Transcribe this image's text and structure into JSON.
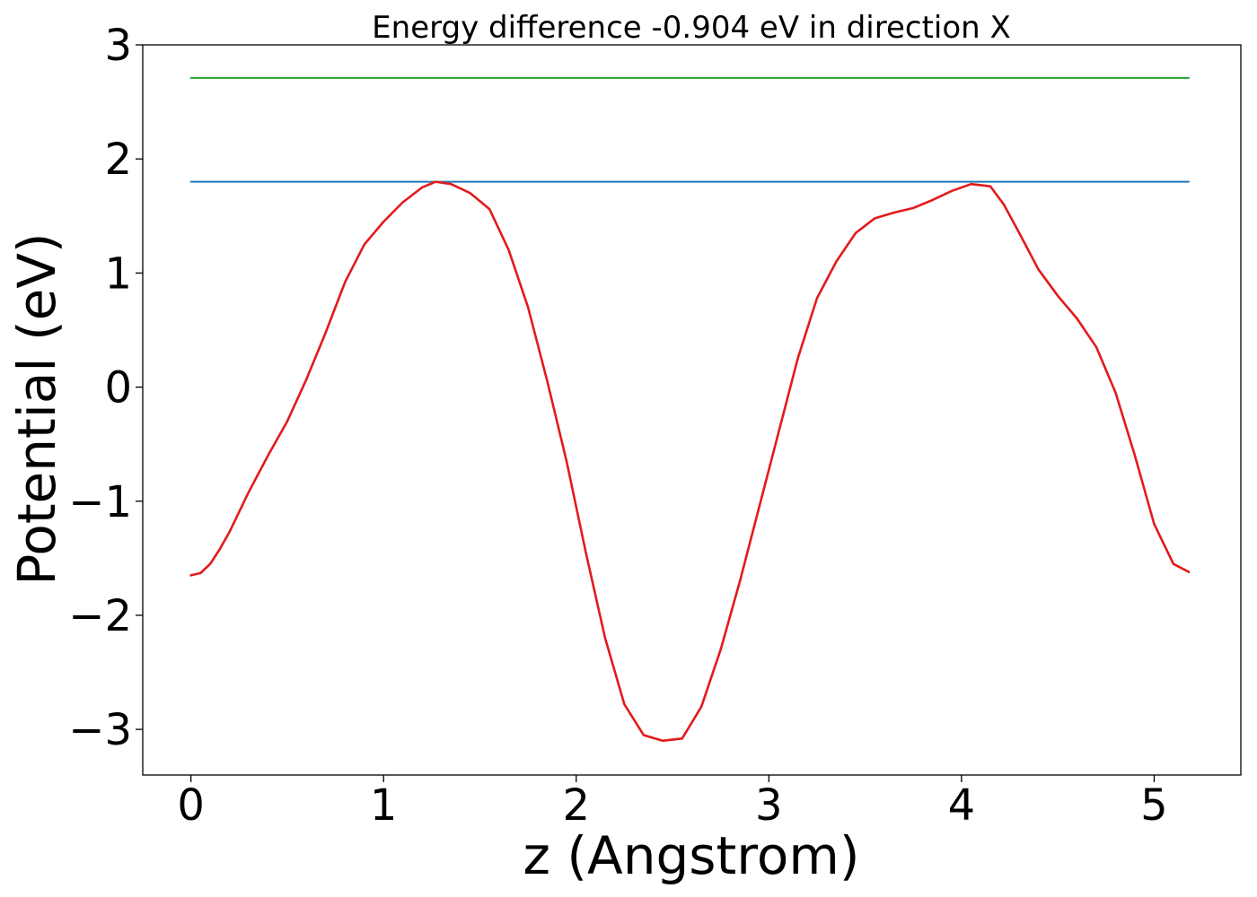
{
  "chart_data": {
    "type": "line",
    "title": "Energy difference -0.904 eV in direction X",
    "xlabel": "z (Angstrom)",
    "ylabel": "Potential (eV)",
    "xlim": [
      -0.25,
      5.45
    ],
    "ylim": [
      -3.4,
      3.0
    ],
    "xticks": [
      0,
      1,
      2,
      3,
      4,
      5
    ],
    "xtick_labels": [
      "0",
      "1",
      "2",
      "3",
      "4",
      "5"
    ],
    "yticks": [
      -3,
      -2,
      -1,
      0,
      1,
      2,
      3
    ],
    "ytick_labels": [
      "−3",
      "−2",
      "−1",
      "0",
      "1",
      "2",
      "3"
    ],
    "grid": false,
    "series": [
      {
        "color": "#2ca02c",
        "x": [
          0,
          5.18
        ],
        "y": [
          2.71,
          2.71
        ]
      },
      {
        "color": "#1f77b4",
        "x": [
          0,
          5.18
        ],
        "y": [
          1.8,
          1.8
        ]
      },
      {
        "color": "#e31a1c",
        "x": [
          0.0,
          0.05,
          0.1,
          0.15,
          0.2,
          0.3,
          0.4,
          0.5,
          0.6,
          0.7,
          0.8,
          0.9,
          1.0,
          1.1,
          1.2,
          1.27,
          1.35,
          1.45,
          1.55,
          1.65,
          1.75,
          1.85,
          1.95,
          2.05,
          2.15,
          2.25,
          2.35,
          2.45,
          2.55,
          2.65,
          2.75,
          2.85,
          2.95,
          3.05,
          3.15,
          3.25,
          3.35,
          3.45,
          3.55,
          3.65,
          3.75,
          3.85,
          3.95,
          4.05,
          4.15,
          4.22,
          4.3,
          4.4,
          4.5,
          4.6,
          4.7,
          4.8,
          4.9,
          5.0,
          5.1,
          5.18
        ],
        "y": [
          -1.65,
          -1.63,
          -1.55,
          -1.42,
          -1.27,
          -0.92,
          -0.6,
          -0.3,
          0.07,
          0.48,
          0.92,
          1.25,
          1.45,
          1.62,
          1.75,
          1.8,
          1.78,
          1.7,
          1.56,
          1.2,
          0.7,
          0.05,
          -0.65,
          -1.45,
          -2.2,
          -2.78,
          -3.05,
          -3.1,
          -3.08,
          -2.8,
          -2.3,
          -1.7,
          -1.05,
          -0.4,
          0.25,
          0.78,
          1.1,
          1.35,
          1.48,
          1.53,
          1.57,
          1.64,
          1.72,
          1.78,
          1.76,
          1.6,
          1.35,
          1.03,
          0.8,
          0.6,
          0.35,
          -0.05,
          -0.6,
          -1.2,
          -1.55,
          -1.62
        ]
      }
    ]
  }
}
